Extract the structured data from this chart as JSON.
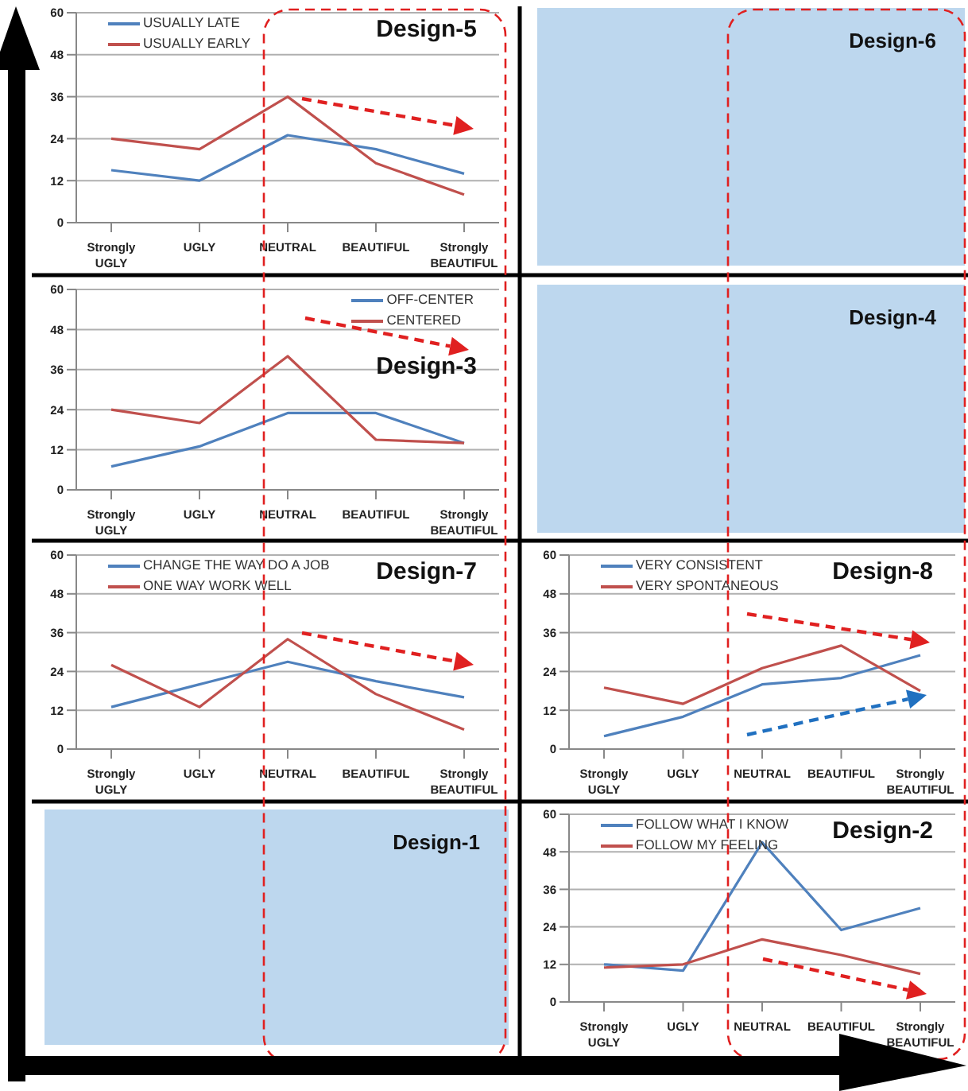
{
  "chart_data": [
    {
      "type": "line",
      "title": "Design-5",
      "categories": [
        "Strongly UGLY",
        "UGLY",
        "NEUTRAL",
        "BEAUTIFUL",
        "Strongly BEAUTIFUL"
      ],
      "ylim": [
        0,
        60
      ],
      "yticks": [
        0,
        12,
        24,
        36,
        48,
        60
      ],
      "grid": "y",
      "legend": "top left",
      "series": [
        {
          "name": "USUALLY LATE",
          "color": "#4f81bd",
          "values": [
            15,
            12,
            25,
            21,
            14
          ]
        },
        {
          "name": "USUALLY EARLY",
          "color": "#c0504d",
          "values": [
            24,
            21,
            36,
            17,
            8
          ]
        }
      ]
    },
    {
      "type": "other",
      "title": "Design-6",
      "color": "#bdd7ee"
    },
    {
      "type": "line",
      "title": "Design-3",
      "categories": [
        "Strongly UGLY",
        "UGLY",
        "NEUTRAL",
        "BEAUTIFUL",
        "Strongly BEAUTIFUL"
      ],
      "ylim": [
        0,
        60
      ],
      "yticks": [
        0,
        12,
        24,
        36,
        48,
        60
      ],
      "grid": "y",
      "legend": "top right",
      "series": [
        {
          "name": "OFF-CENTER",
          "color": "#4f81bd",
          "values": [
            7,
            13,
            23,
            23,
            14
          ]
        },
        {
          "name": "CENTERED",
          "color": "#c0504d",
          "values": [
            24,
            20,
            40,
            15,
            14
          ]
        }
      ]
    },
    {
      "type": "other",
      "title": "Design-4",
      "color": "#bdd7ee"
    },
    {
      "type": "line",
      "title": "Design-7",
      "categories": [
        "Strongly UGLY",
        "UGLY",
        "NEUTRAL",
        "BEAUTIFUL",
        "Strongly BEAUTIFUL"
      ],
      "ylim": [
        0,
        60
      ],
      "yticks": [
        0,
        12,
        24,
        36,
        48,
        60
      ],
      "grid": "y",
      "legend": "top left",
      "series": [
        {
          "name": "CHANGE THE WAY DO A JOB",
          "color": "#4f81bd",
          "values": [
            13,
            20,
            27,
            21,
            16
          ]
        },
        {
          "name": "ONE WAY WORK WELL",
          "color": "#c0504d",
          "values": [
            26,
            13,
            34,
            17,
            6
          ]
        }
      ]
    },
    {
      "type": "line",
      "title": "Design-8",
      "categories": [
        "Strongly UGLY",
        "UGLY",
        "NEUTRAL",
        "BEAUTIFUL",
        "Strongly BEAUTIFUL"
      ],
      "ylim": [
        0,
        60
      ],
      "yticks": [
        0,
        12,
        24,
        36,
        48,
        60
      ],
      "grid": "y",
      "legend": "top left",
      "series": [
        {
          "name": "VERY CONSISTENT",
          "color": "#4f81bd",
          "values": [
            4,
            10,
            20,
            22,
            29
          ]
        },
        {
          "name": "VERY SPONTANEOUS",
          "color": "#c0504d",
          "values": [
            19,
            14,
            25,
            32,
            18
          ]
        }
      ]
    },
    {
      "type": "other",
      "title": "Design-1",
      "color": "#bdd7ee"
    },
    {
      "type": "line",
      "title": "Design-2",
      "categories": [
        "Strongly UGLY",
        "UGLY",
        "NEUTRAL",
        "BEAUTIFUL",
        "Strongly BEAUTIFUL"
      ],
      "ylim": [
        0,
        60
      ],
      "yticks": [
        0,
        12,
        24,
        36,
        48,
        60
      ],
      "grid": "y",
      "legend": "top left",
      "series": [
        {
          "name": "FOLLOW WHAT I KNOW",
          "color": "#4f81bd",
          "values": [
            12,
            10,
            51,
            23,
            30
          ]
        },
        {
          "name": "FOLLOW MY FEELING",
          "color": "#c0504d",
          "values": [
            11,
            12,
            20,
            15,
            9
          ]
        }
      ]
    }
  ]
}
